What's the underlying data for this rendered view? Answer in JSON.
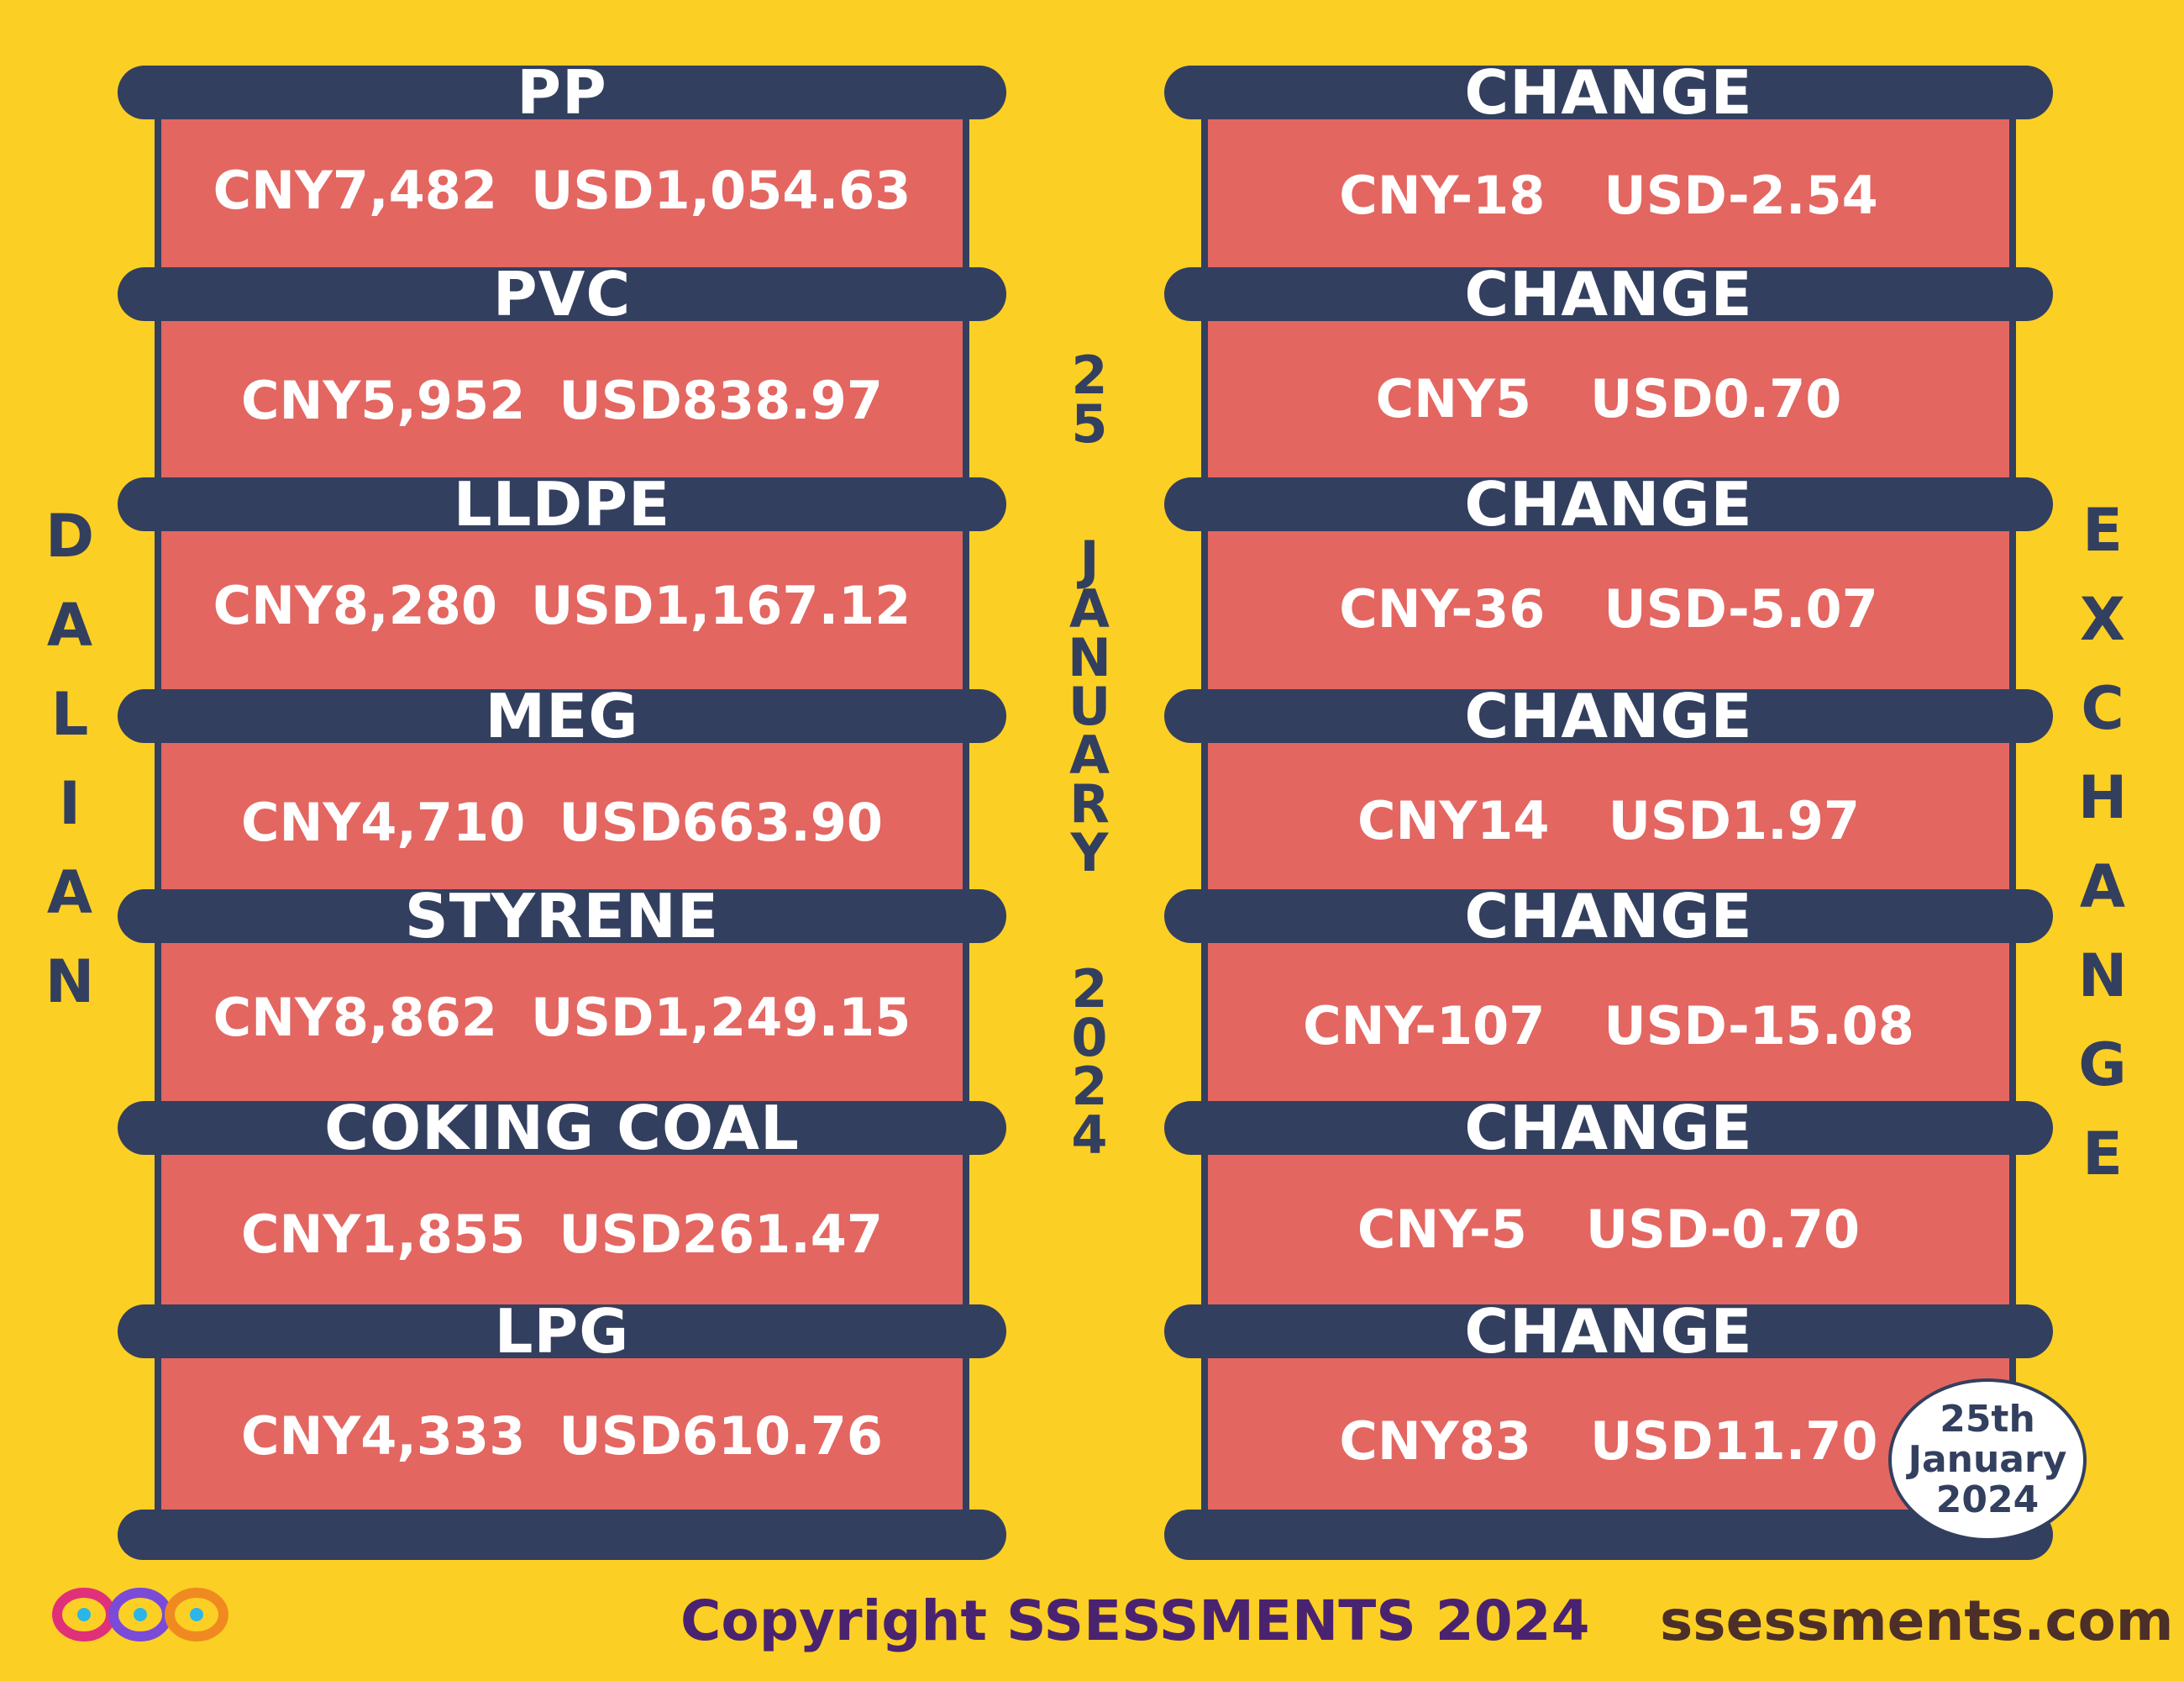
{
  "left_vertical_text": [
    "D",
    "A",
    "L",
    "I",
    "A",
    "N"
  ],
  "right_vertical_text": [
    "E",
    "X",
    "C",
    "H",
    "A",
    "N",
    "G",
    "E"
  ],
  "date_vertical": {
    "day": [
      "2",
      "5"
    ],
    "month": [
      "J",
      "A",
      "N",
      "U",
      "A",
      "R",
      "Y"
    ],
    "year": [
      "2",
      "0",
      "2",
      "4"
    ]
  },
  "products": [
    {
      "name": "PP",
      "cny": "CNY7,482",
      "usd": "USD1,054.63"
    },
    {
      "name": "PVC",
      "cny": "CNY5,952",
      "usd": "USD838.97"
    },
    {
      "name": "LLDPE",
      "cny": "CNY8,280",
      "usd": "USD1,167.12"
    },
    {
      "name": "MEG",
      "cny": "CNY4,710",
      "usd": "USD663.90"
    },
    {
      "name": "STYRENE",
      "cny": "CNY8,862",
      "usd": "USD1,249.15"
    },
    {
      "name": "COKING COAL",
      "cny": "CNY1,855",
      "usd": "USD261.47"
    },
    {
      "name": "LPG",
      "cny": "CNY4,333",
      "usd": "USD610.76"
    }
  ],
  "changes": [
    {
      "label": "CHANGE",
      "cny": "CNY-18",
      "usd": "USD-2.54"
    },
    {
      "label": "CHANGE",
      "cny": "CNY5",
      "usd": "USD0.70"
    },
    {
      "label": "CHANGE",
      "cny": "CNY-36",
      "usd": "USD-5.07"
    },
    {
      "label": "CHANGE",
      "cny": "CNY14",
      "usd": "USD1.97"
    },
    {
      "label": "CHANGE",
      "cny": "CNY-107",
      "usd": "USD-15.08"
    },
    {
      "label": "CHANGE",
      "cny": "CNY-5",
      "usd": "USD-0.70"
    },
    {
      "label": "CHANGE",
      "cny": "CNY83",
      "usd": "USD11.70"
    }
  ],
  "date_badge": [
    "25th",
    "January",
    "2024"
  ],
  "footer": {
    "logo_icon": "infinity-loops-logo-icon",
    "copyright": "Copyright SSESSMENTS 2024",
    "website": "ssessments.com"
  },
  "colors": {
    "background": "#fccf25",
    "band": "#333f5f",
    "panel": "#e36661",
    "copyright": "#4a2370",
    "website": "#4c2f28"
  }
}
